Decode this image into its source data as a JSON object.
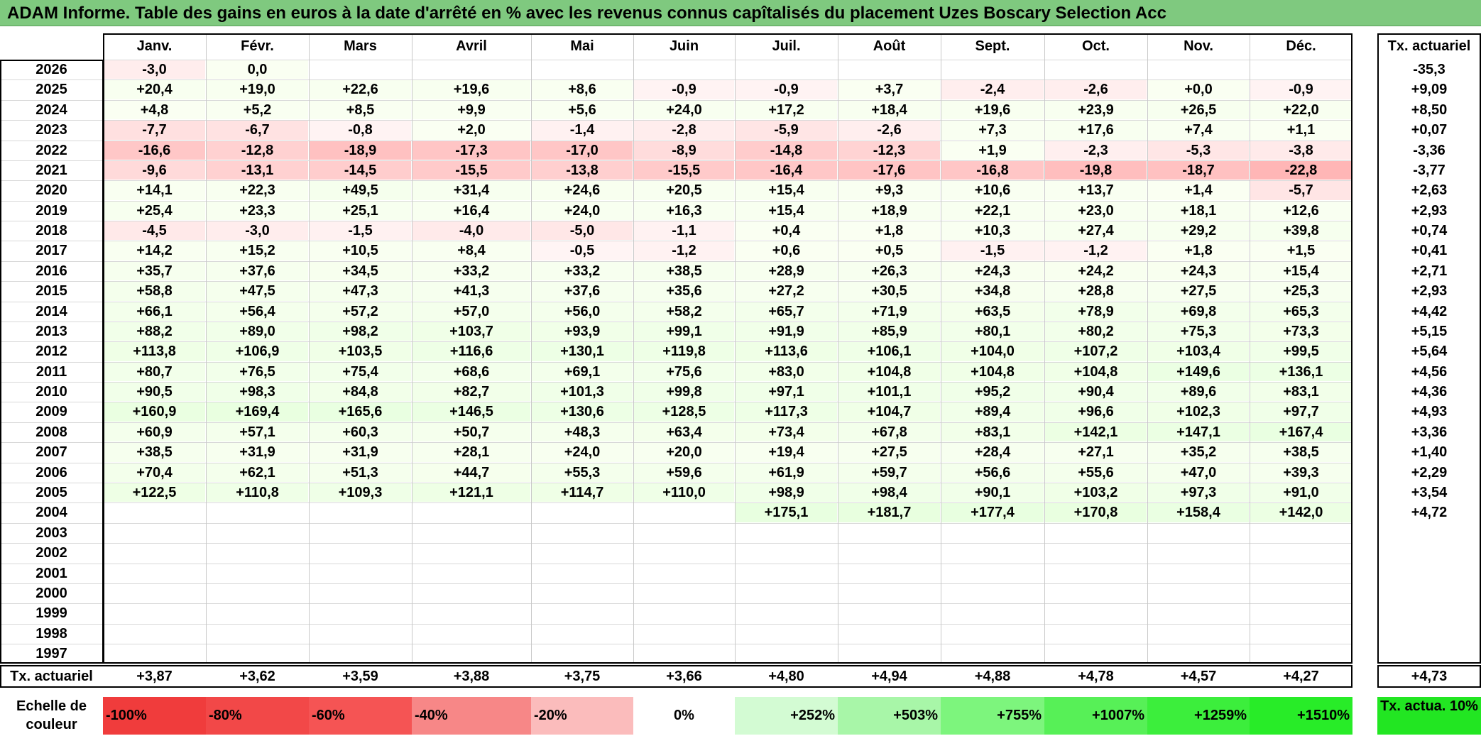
{
  "title": "ADAM Informe. Table des gains en euros à la date d'arrêté en % avec les revenus connus capîtalisés du placement Uzes Boscary Selection Acc",
  "chart_data": {
    "type": "heatmap",
    "columns": [
      "Janv.",
      "Févr.",
      "Mars",
      "Avril",
      "Mai",
      "Juin",
      "Juil.",
      "Août",
      "Sept.",
      "Oct.",
      "Nov.",
      "Déc."
    ],
    "rate_header": "Tx. actuariel",
    "rows": [
      {
        "year": "2026",
        "values": [
          "-3,0",
          "0,0",
          "",
          "",
          "",
          "",
          "",
          "",
          "",
          "",
          "",
          ""
        ],
        "rate": "-35,3"
      },
      {
        "year": "2025",
        "values": [
          "+20,4",
          "+19,0",
          "+22,6",
          "+19,6",
          "+8,6",
          "-0,9",
          "-0,9",
          "+3,7",
          "-2,4",
          "-2,6",
          "+0,0",
          "-0,9"
        ],
        "rate": "+9,09"
      },
      {
        "year": "2024",
        "values": [
          "+4,8",
          "+5,2",
          "+8,5",
          "+9,9",
          "+5,6",
          "+24,0",
          "+17,2",
          "+18,4",
          "+19,6",
          "+23,9",
          "+26,5",
          "+22,0"
        ],
        "rate": "+8,50"
      },
      {
        "year": "2023",
        "values": [
          "-7,7",
          "-6,7",
          "-0,8",
          "+2,0",
          "-1,4",
          "-2,8",
          "-5,9",
          "-2,6",
          "+7,3",
          "+17,6",
          "+7,4",
          "+1,1"
        ],
        "rate": "+0,07"
      },
      {
        "year": "2022",
        "values": [
          "-16,6",
          "-12,8",
          "-18,9",
          "-17,3",
          "-17,0",
          "-8,9",
          "-14,8",
          "-12,3",
          "+1,9",
          "-2,3",
          "-5,3",
          "-3,8"
        ],
        "rate": "-3,36"
      },
      {
        "year": "2021",
        "values": [
          "-9,6",
          "-13,1",
          "-14,5",
          "-15,5",
          "-13,8",
          "-15,5",
          "-16,4",
          "-17,6",
          "-16,8",
          "-19,8",
          "-18,7",
          "-22,8"
        ],
        "rate": "-3,77"
      },
      {
        "year": "2020",
        "values": [
          "+14,1",
          "+22,3",
          "+49,5",
          "+31,4",
          "+24,6",
          "+20,5",
          "+15,4",
          "+9,3",
          "+10,6",
          "+13,7",
          "+1,4",
          "-5,7"
        ],
        "rate": "+2,63"
      },
      {
        "year": "2019",
        "values": [
          "+25,4",
          "+23,3",
          "+25,1",
          "+16,4",
          "+24,0",
          "+16,3",
          "+15,4",
          "+18,9",
          "+22,1",
          "+23,0",
          "+18,1",
          "+12,6"
        ],
        "rate": "+2,93"
      },
      {
        "year": "2018",
        "values": [
          "-4,5",
          "-3,0",
          "-1,5",
          "-4,0",
          "-5,0",
          "-1,1",
          "+0,4",
          "+1,8",
          "+10,3",
          "+27,4",
          "+29,2",
          "+39,8"
        ],
        "rate": "+0,74"
      },
      {
        "year": "2017",
        "values": [
          "+14,2",
          "+15,2",
          "+10,5",
          "+8,4",
          "-0,5",
          "-1,2",
          "+0,6",
          "+0,5",
          "-1,5",
          "-1,2",
          "+1,8",
          "+1,5"
        ],
        "rate": "+0,41"
      },
      {
        "year": "2016",
        "values": [
          "+35,7",
          "+37,6",
          "+34,5",
          "+33,2",
          "+33,2",
          "+38,5",
          "+28,9",
          "+26,3",
          "+24,3",
          "+24,2",
          "+24,3",
          "+15,4"
        ],
        "rate": "+2,71"
      },
      {
        "year": "2015",
        "values": [
          "+58,8",
          "+47,5",
          "+47,3",
          "+41,3",
          "+37,6",
          "+35,6",
          "+27,2",
          "+30,5",
          "+34,8",
          "+28,8",
          "+27,5",
          "+25,3"
        ],
        "rate": "+2,93"
      },
      {
        "year": "2014",
        "values": [
          "+66,1",
          "+56,4",
          "+57,2",
          "+57,0",
          "+56,0",
          "+58,2",
          "+65,7",
          "+71,9",
          "+63,5",
          "+78,9",
          "+69,8",
          "+65,3"
        ],
        "rate": "+4,42"
      },
      {
        "year": "2013",
        "values": [
          "+88,2",
          "+89,0",
          "+98,2",
          "+103,7",
          "+93,9",
          "+99,1",
          "+91,9",
          "+85,9",
          "+80,1",
          "+80,2",
          "+75,3",
          "+73,3"
        ],
        "rate": "+5,15"
      },
      {
        "year": "2012",
        "values": [
          "+113,8",
          "+106,9",
          "+103,5",
          "+116,6",
          "+130,1",
          "+119,8",
          "+113,6",
          "+106,1",
          "+104,0",
          "+107,2",
          "+103,4",
          "+99,5"
        ],
        "rate": "+5,64"
      },
      {
        "year": "2011",
        "values": [
          "+80,7",
          "+76,5",
          "+75,4",
          "+68,6",
          "+69,1",
          "+75,6",
          "+83,0",
          "+104,8",
          "+104,8",
          "+104,8",
          "+149,6",
          "+136,1"
        ],
        "rate": "+4,56"
      },
      {
        "year": "2010",
        "values": [
          "+90,5",
          "+98,3",
          "+84,8",
          "+82,7",
          "+101,3",
          "+99,8",
          "+97,1",
          "+101,1",
          "+95,2",
          "+90,4",
          "+89,6",
          "+83,1"
        ],
        "rate": "+4,36"
      },
      {
        "year": "2009",
        "values": [
          "+160,9",
          "+169,4",
          "+165,6",
          "+146,5",
          "+130,6",
          "+128,5",
          "+117,3",
          "+104,7",
          "+89,4",
          "+96,6",
          "+102,3",
          "+97,7"
        ],
        "rate": "+4,93"
      },
      {
        "year": "2008",
        "values": [
          "+60,9",
          "+57,1",
          "+60,3",
          "+50,7",
          "+48,3",
          "+63,4",
          "+73,4",
          "+67,8",
          "+83,1",
          "+142,1",
          "+147,1",
          "+167,4"
        ],
        "rate": "+3,36"
      },
      {
        "year": "2007",
        "values": [
          "+38,5",
          "+31,9",
          "+31,9",
          "+28,1",
          "+24,0",
          "+20,0",
          "+19,4",
          "+27,5",
          "+28,4",
          "+27,1",
          "+35,2",
          "+38,5"
        ],
        "rate": "+1,40"
      },
      {
        "year": "2006",
        "values": [
          "+70,4",
          "+62,1",
          "+51,3",
          "+44,7",
          "+55,3",
          "+59,6",
          "+61,9",
          "+59,7",
          "+56,6",
          "+55,6",
          "+47,0",
          "+39,3"
        ],
        "rate": "+2,29"
      },
      {
        "year": "2005",
        "values": [
          "+122,5",
          "+110,8",
          "+109,3",
          "+121,1",
          "+114,7",
          "+110,0",
          "+98,9",
          "+98,4",
          "+90,1",
          "+103,2",
          "+97,3",
          "+91,0"
        ],
        "rate": "+3,54"
      },
      {
        "year": "2004",
        "values": [
          "",
          "",
          "",
          "",
          "",
          "",
          "+175,1",
          "+181,7",
          "+177,4",
          "+170,8",
          "+158,4",
          "+142,0"
        ],
        "rate": "+4,72"
      },
      {
        "year": "2003",
        "values": [
          "",
          "",
          "",
          "",
          "",
          "",
          "",
          "",
          "",
          "",
          "",
          ""
        ],
        "rate": ""
      },
      {
        "year": "2002",
        "values": [
          "",
          "",
          "",
          "",
          "",
          "",
          "",
          "",
          "",
          "",
          "",
          ""
        ],
        "rate": ""
      },
      {
        "year": "2001",
        "values": [
          "",
          "",
          "",
          "",
          "",
          "",
          "",
          "",
          "",
          "",
          "",
          ""
        ],
        "rate": ""
      },
      {
        "year": "2000",
        "values": [
          "",
          "",
          "",
          "",
          "",
          "",
          "",
          "",
          "",
          "",
          "",
          ""
        ],
        "rate": ""
      },
      {
        "year": "1999",
        "values": [
          "",
          "",
          "",
          "",
          "",
          "",
          "",
          "",
          "",
          "",
          "",
          ""
        ],
        "rate": ""
      },
      {
        "year": "1998",
        "values": [
          "",
          "",
          "",
          "",
          "",
          "",
          "",
          "",
          "",
          "",
          "",
          ""
        ],
        "rate": ""
      },
      {
        "year": "1997",
        "values": [
          "",
          "",
          "",
          "",
          "",
          "",
          "",
          "",
          "",
          "",
          "",
          ""
        ],
        "rate": ""
      }
    ],
    "footer": {
      "label": "Tx. actuariel",
      "values": [
        "+3,87",
        "+3,62",
        "+3,59",
        "+3,88",
        "+3,75",
        "+3,66",
        "+4,80",
        "+4,94",
        "+4,88",
        "+4,78",
        "+4,57",
        "+4,27"
      ],
      "overall": "+4,73"
    },
    "color_scale": {
      "label": "Echelle de couleur",
      "steps": [
        {
          "text": "-100%",
          "color": "#f03c3c"
        },
        {
          "text": "-80%",
          "color": "#f24848"
        },
        {
          "text": "-60%",
          "color": "#f55454"
        },
        {
          "text": "-40%",
          "color": "#f78787"
        },
        {
          "text": "-20%",
          "color": "#fbbcbc"
        },
        {
          "text": "0%",
          "color": "#ffffff"
        },
        {
          "text": "+252%",
          "color": "#d3fbd3"
        },
        {
          "text": "+503%",
          "color": "#a8f6a8"
        },
        {
          "text": "+755%",
          "color": "#7df57d"
        },
        {
          "text": "+1007%",
          "color": "#57f057"
        },
        {
          "text": "+1259%",
          "color": "#3cee3c"
        },
        {
          "text": "+1510%",
          "color": "#28ec28"
        }
      ],
      "rate_label": "Tx. actua. 10%",
      "rate_color": "#22e622"
    }
  }
}
